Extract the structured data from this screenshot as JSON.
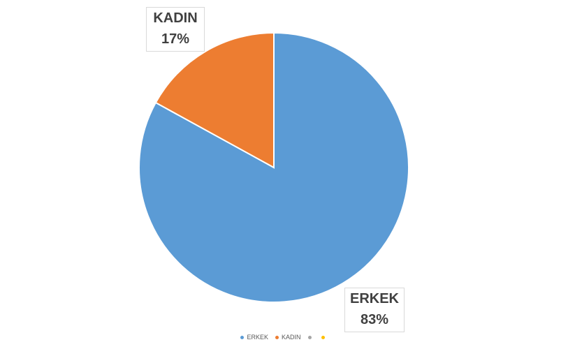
{
  "chart_data": {
    "type": "pie",
    "categories": [
      "ERKEK",
      "KADIN"
    ],
    "values": [
      83,
      17
    ],
    "labels": [
      {
        "category": "ERKEK",
        "percent": "83%"
      },
      {
        "category": "KADIN",
        "percent": "17%"
      }
    ],
    "colors": [
      "#5b9bd5",
      "#ed7d31"
    ],
    "legend": {
      "position": "bottom",
      "entries": [
        {
          "name": "ERKEK",
          "color": "#5b9bd5"
        },
        {
          "name": "KADIN",
          "color": "#ed7d31"
        },
        {
          "name": "",
          "color": "#a5a5a5"
        },
        {
          "name": "",
          "color": "#ffc000"
        }
      ]
    },
    "slice_border_color": "#ffffff"
  }
}
